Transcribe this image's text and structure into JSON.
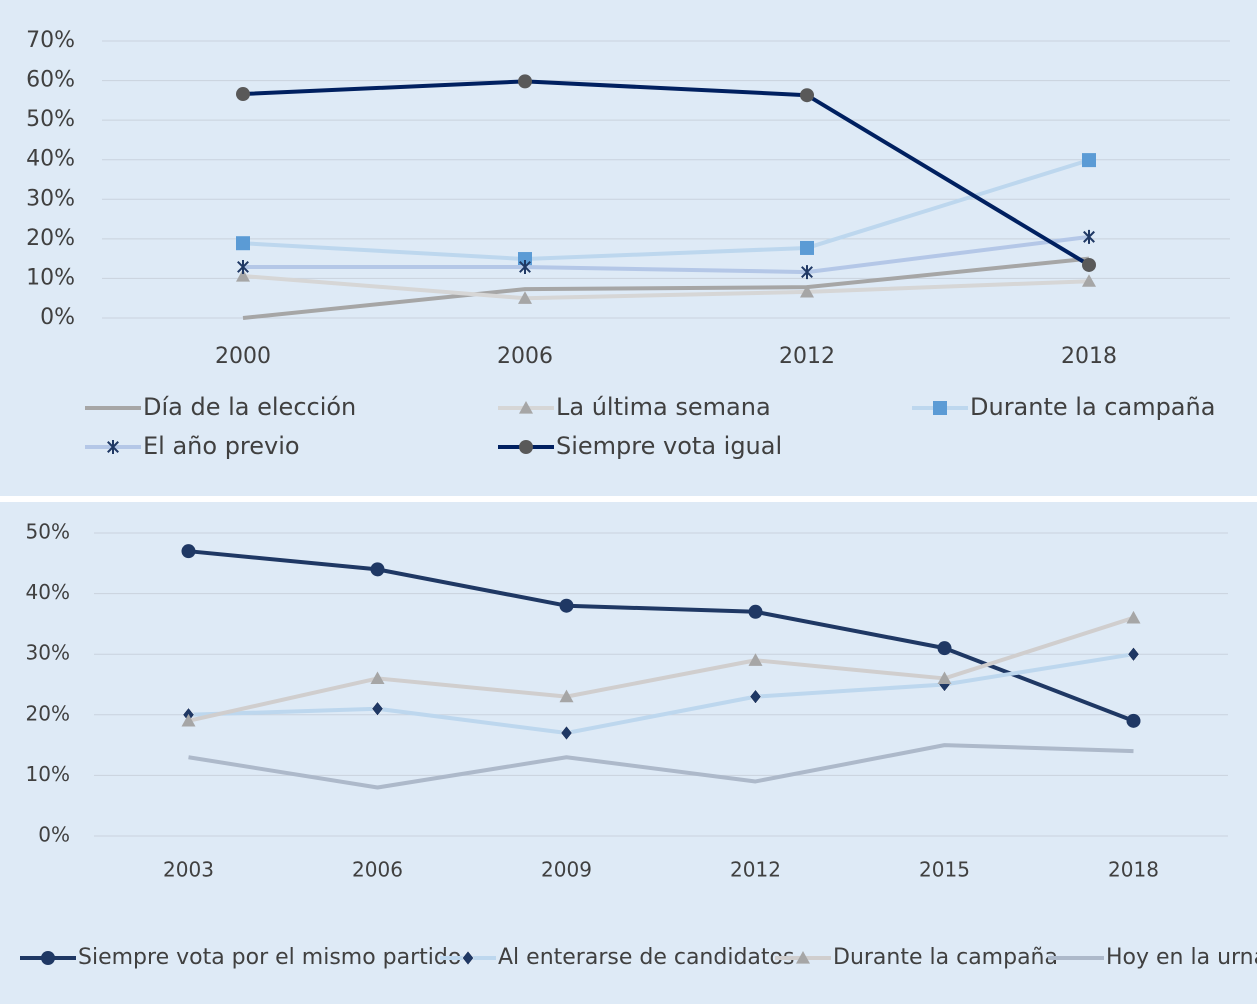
{
  "chart_data": [
    {
      "type": "line",
      "categories": [
        "2000",
        "2006",
        "2012",
        "2018"
      ],
      "ylim": [
        0,
        70
      ],
      "yticks": [
        {
          "value": 0,
          "label": "0%"
        },
        {
          "value": 10,
          "label": "10%"
        },
        {
          "value": 20,
          "label": "20%"
        },
        {
          "value": 30,
          "label": "30%"
        },
        {
          "value": 40,
          "label": "40%"
        },
        {
          "value": 50,
          "label": "50%"
        },
        {
          "value": 60,
          "label": "60%"
        },
        {
          "value": 70,
          "label": "70%"
        }
      ],
      "grid": true,
      "series": [
        {
          "name": "Día de la elección",
          "color": "#a6a6a6",
          "values": [
            0,
            7.3,
            7.8,
            15
          ]
        },
        {
          "name": "La última semana",
          "color": "#d6d6d6",
          "marker": "triangle",
          "marker_color": "#a6a6a6",
          "values": [
            10.6,
            5,
            6.6,
            9.3
          ]
        },
        {
          "name": "Durante la campaña",
          "color": "#bdd7ee",
          "marker": "square",
          "marker_color": "#5b9bd5",
          "values": [
            18.9,
            14.9,
            17.7,
            39.9
          ]
        },
        {
          "name": "El año previo",
          "color": "#b4c7e7",
          "marker": "star",
          "marker_color": "#1f3864",
          "values": [
            12.9,
            12.9,
            11.6,
            20.5
          ]
        },
        {
          "name": "Siempre vota igual",
          "color": "#002060",
          "marker": "circle",
          "marker_color": "#595959",
          "values": [
            56.6,
            59.8,
            56.3,
            13.4
          ]
        }
      ]
    },
    {
      "type": "line",
      "categories": [
        "2003",
        "2006",
        "2009",
        "2012",
        "2015",
        "2018"
      ],
      "ylim": [
        0,
        50
      ],
      "yticks": [
        {
          "value": 0,
          "label": "0%"
        },
        {
          "value": 10,
          "label": "10%"
        },
        {
          "value": 20,
          "label": "20%"
        },
        {
          "value": 30,
          "label": "30%"
        },
        {
          "value": 40,
          "label": "40%"
        },
        {
          "value": 50,
          "label": "50%"
        }
      ],
      "grid": true,
      "series": [
        {
          "name": "Siempre vota por el mismo partido",
          "color": "#1f3864",
          "marker": "circle",
          "marker_color": "#1f3864",
          "values": [
            47,
            44,
            38,
            37,
            31,
            19
          ]
        },
        {
          "name": "Al enterarse de candidatos",
          "color": "#bdd7ee",
          "marker": "diamond",
          "marker_color": "#1f3864",
          "values": [
            20,
            21,
            17,
            23,
            25,
            30
          ]
        },
        {
          "name": "Durante la campaña",
          "color": "#d0cece",
          "marker": "triangle",
          "marker_color": "#a6a6a6",
          "values": [
            19,
            26,
            23,
            29,
            26,
            36
          ]
        },
        {
          "name": "Hoy en la urna",
          "color": "#adb9ca",
          "values": [
            13,
            8,
            13,
            9,
            15,
            14
          ]
        }
      ]
    }
  ]
}
